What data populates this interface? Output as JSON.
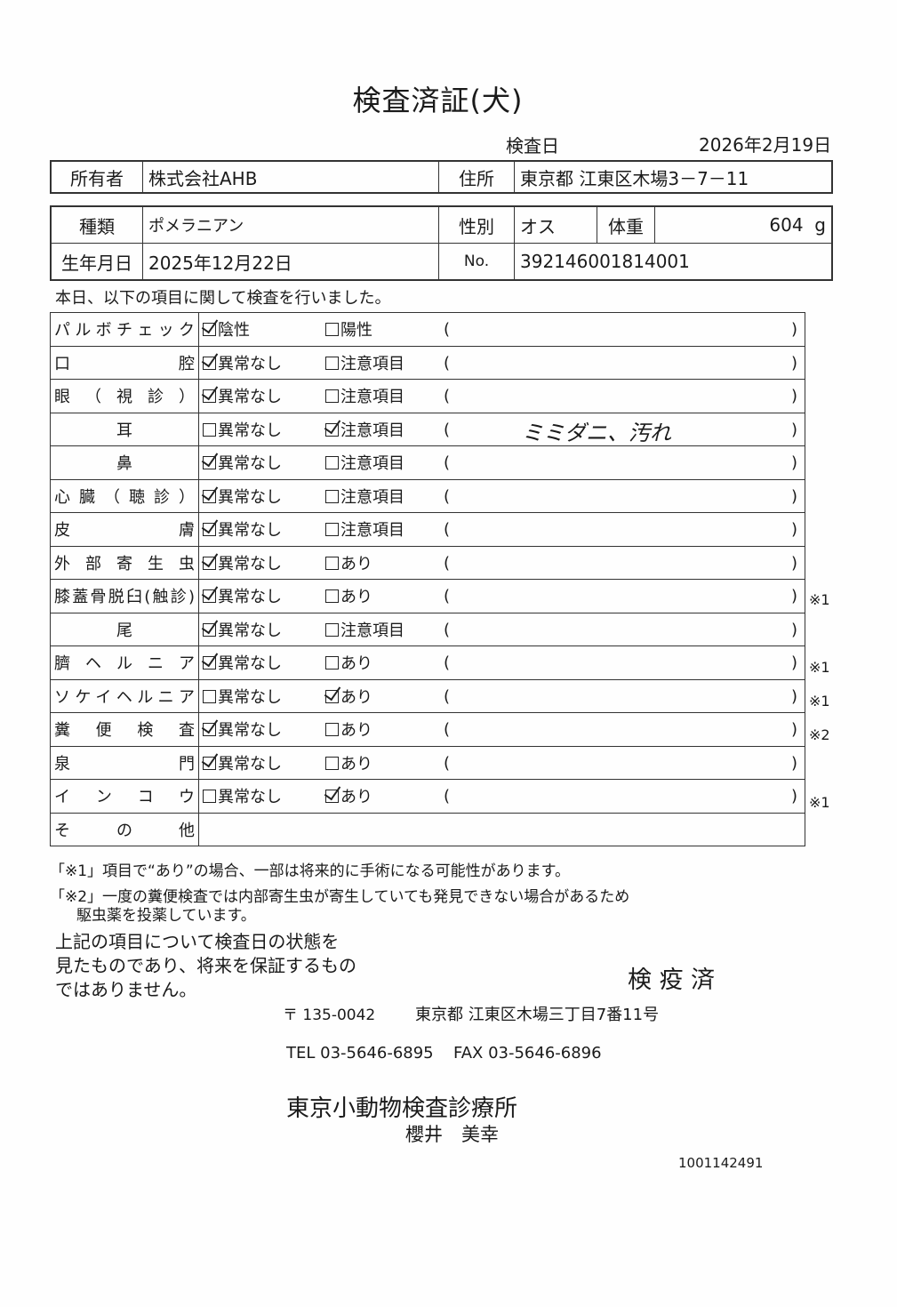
{
  "title": "検査済証(犬)",
  "exam_date_label": "検査日",
  "exam_date": "2026年2月19日",
  "owner": {
    "label": "所有者",
    "value": "株式会社AHB",
    "address_label": "住所",
    "address": "東京都 江東区木場3－7－11"
  },
  "pet": {
    "breed_label": "種類",
    "breed": "ポメラニアン",
    "sex_label": "性別",
    "sex": "オス",
    "weight_label": "体重",
    "weight": "604",
    "weight_unit": "g",
    "dob_label": "生年月日",
    "dob": "2025年12月22日",
    "no_label": "No.",
    "no": "392146001814001"
  },
  "intro": "本日、以下の項目に関して検査を行いました。",
  "paren_open": "(",
  "paren_close": ")",
  "items": [
    {
      "label": "パルボチェック",
      "opt1": "陰性",
      "opt2": "陽性",
      "checked": 1,
      "note": "",
      "mark": ""
    },
    {
      "label": "口腔",
      "opt1": "異常なし",
      "opt2": "注意項目",
      "checked": 1,
      "note": "",
      "mark": ""
    },
    {
      "label": "眼（視診）",
      "opt1": "異常なし",
      "opt2": "注意項目",
      "checked": 1,
      "note": "",
      "mark": ""
    },
    {
      "label": "耳",
      "opt1": "異常なし",
      "opt2": "注意項目",
      "checked": 2,
      "note": "ミミダニ、汚れ",
      "mark": "",
      "center": true
    },
    {
      "label": "鼻",
      "opt1": "異常なし",
      "opt2": "注意項目",
      "checked": 1,
      "note": "",
      "mark": "",
      "center": true
    },
    {
      "label": "心臓（聴診）",
      "opt1": "異常なし",
      "opt2": "注意項目",
      "checked": 1,
      "note": "",
      "mark": ""
    },
    {
      "label": "皮膚",
      "opt1": "異常なし",
      "opt2": "注意項目",
      "checked": 1,
      "note": "",
      "mark": ""
    },
    {
      "label": "外部寄生虫",
      "opt1": "異常なし",
      "opt2": "あり",
      "checked": 1,
      "note": "",
      "mark": ""
    },
    {
      "label": "膝蓋骨脱臼(触診)",
      "opt1": "異常なし",
      "opt2": "あり",
      "checked": 1,
      "note": "",
      "mark": "※1"
    },
    {
      "label": "尾",
      "opt1": "異常なし",
      "opt2": "注意項目",
      "checked": 1,
      "note": "",
      "mark": "",
      "center": true
    },
    {
      "label": "臍ヘルニア",
      "opt1": "異常なし",
      "opt2": "あり",
      "checked": 1,
      "note": "",
      "mark": "※1"
    },
    {
      "label": "ソケイヘルニア",
      "opt1": "異常なし",
      "opt2": "あり",
      "checked": 2,
      "note": "",
      "mark": "※1"
    },
    {
      "label": "糞便検査",
      "opt1": "異常なし",
      "opt2": "あり",
      "checked": 1,
      "note": "",
      "mark": "※2"
    },
    {
      "label": "泉門",
      "opt1": "異常なし",
      "opt2": "あり",
      "checked": 1,
      "note": "",
      "mark": ""
    },
    {
      "label": "インコウ",
      "opt1": "異常なし",
      "opt2": "あり",
      "checked": 2,
      "note": "",
      "mark": "※1"
    }
  ],
  "other_label": "その他",
  "footnote1": "「※1」項目で“あり”の場合、一部は将来的に手術になる可能性があります。",
  "footnote2a": "「※2」一度の糞便検査では内部寄生虫が寄生していても発見できない場合があるため",
  "footnote2b": "駆虫薬を投薬しています。",
  "disclaimer": [
    "上記の項目について検査日の状態を",
    "見たものであり、将来を保証するもの",
    "ではありません。"
  ],
  "stamp": "検 疫 済",
  "clinic": {
    "postal": "〒 135-0042",
    "address": "東京都 江東区木場三丁目7番11号",
    "tel": "TEL 03-5646-6895",
    "fax": "FAX 03-5646-6896",
    "name": "東京小動物検査診療所",
    "person": "櫻井　美幸"
  },
  "doc_id": "1001142491"
}
